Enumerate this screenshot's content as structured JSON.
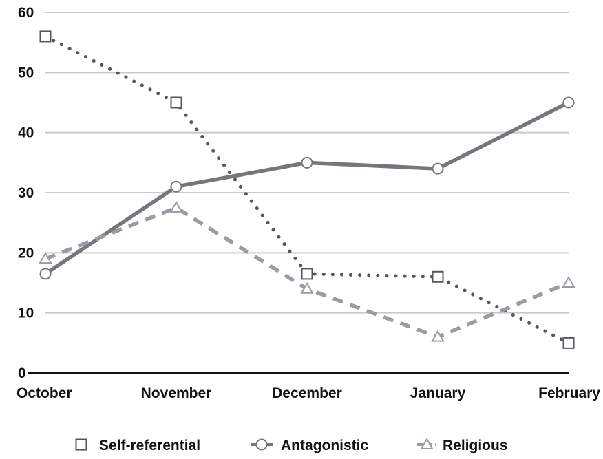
{
  "chart_data": {
    "type": "line",
    "title": "",
    "xlabel": "",
    "ylabel": "",
    "categories": [
      "October",
      "November",
      "December",
      "January",
      "February"
    ],
    "ylim": [
      0,
      60
    ],
    "yticks": [
      0,
      10,
      20,
      30,
      40,
      50,
      60
    ],
    "grid": true,
    "legend_position": "bottom",
    "series": [
      {
        "name": "Self-referential",
        "values": [
          56,
          45,
          16.5,
          16,
          5
        ],
        "marker": "square",
        "line_style": "dotted",
        "color": "#55565b"
      },
      {
        "name": "Antagonistic",
        "values": [
          16.5,
          31,
          35,
          34,
          45
        ],
        "marker": "circle",
        "line_style": "solid",
        "color": "#76777c"
      },
      {
        "name": "Religious",
        "values": [
          19,
          27.5,
          14,
          6,
          15
        ],
        "marker": "triangle",
        "line_style": "dashed",
        "color": "#9a9ca4"
      }
    ]
  }
}
